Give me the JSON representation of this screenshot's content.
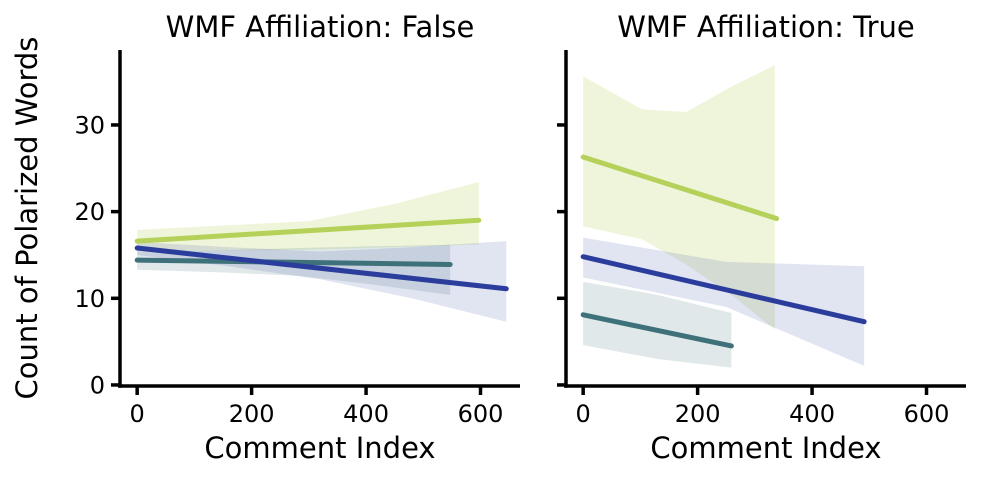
{
  "figure": {
    "background": "#ffffff",
    "text_color": "#000000",
    "axis_color": "#000000"
  },
  "chart_data": [
    {
      "type": "line",
      "title": "WMF Affiliation: False",
      "xlabel": "Comment Index",
      "ylabel": "Count of Polarized Words",
      "xlim": [
        -30,
        669
      ],
      "ylim": [
        -0.12,
        38.65
      ],
      "xticks": [
        0,
        200,
        400,
        600
      ],
      "yticks": [
        0,
        10,
        20,
        30
      ],
      "grid": false,
      "legend": "none",
      "series": [
        {
          "name": "green-series",
          "color": "#b5d15a",
          "band_opacity": 0.22,
          "x": [
            0,
            597
          ],
          "y": [
            16.6,
            19.0
          ],
          "band": {
            "x": [
              0,
              150,
              300,
              450,
              597
            ],
            "upper": [
              17.9,
              18.4,
              18.9,
              20.9,
              23.4
            ],
            "lower": [
              15.3,
              15.5,
              15.6,
              15.9,
              16.2
            ]
          }
        },
        {
          "name": "teal-series",
          "color": "#3f717a",
          "band_opacity": 0.16,
          "x": [
            0,
            547
          ],
          "y": [
            14.4,
            13.9
          ],
          "band": {
            "x": [
              0,
              140,
              280,
              410,
              547
            ],
            "upper": [
              15.3,
              15.5,
              15.8,
              16.0,
              16.2
            ],
            "lower": [
              13.3,
              13.0,
              12.6,
              11.6,
              10.4
            ]
          }
        },
        {
          "name": "blue-series",
          "color": "#2b3d9c",
          "band_opacity": 0.14,
          "x": [
            0,
            645
          ],
          "y": [
            15.8,
            11.1
          ],
          "band": {
            "x": [
              0,
              160,
              320,
              480,
              645
            ],
            "upper": [
              16.5,
              15.9,
              15.4,
              15.9,
              16.6
            ],
            "lower": [
              15.0,
              13.7,
              12.2,
              10.0,
              7.3
            ]
          }
        }
      ]
    },
    {
      "type": "line",
      "title": "WMF Affiliation: True",
      "xlabel": "Comment Index",
      "ylabel": "Count of Polarized Words",
      "xlim": [
        -30,
        669
      ],
      "ylim": [
        -0.12,
        38.65
      ],
      "xticks": [
        0,
        200,
        400,
        600
      ],
      "yticks": [
        0,
        10,
        20,
        30
      ],
      "grid": false,
      "legend": "none",
      "series": [
        {
          "name": "green-series",
          "color": "#b5d15a",
          "band_opacity": 0.22,
          "x": [
            0,
            338
          ],
          "y": [
            26.3,
            19.2
          ],
          "band": {
            "x": [
              0,
              103,
              180,
              261,
              335
            ],
            "upper": [
              35.6,
              31.8,
              31.5,
              34.5,
              36.9
            ],
            "lower": [
              18.3,
              16.8,
              13.9,
              10.3,
              6.4
            ]
          }
        },
        {
          "name": "teal-series",
          "color": "#3f717a",
          "band_opacity": 0.16,
          "x": [
            0,
            259
          ],
          "y": [
            8.1,
            4.5
          ],
          "band": {
            "x": [
              0,
              130,
              259
            ],
            "upper": [
              11.9,
              10.4,
              8.3
            ],
            "lower": [
              4.6,
              3.0,
              2.0
            ]
          }
        },
        {
          "name": "blue-series",
          "color": "#2b3d9c",
          "band_opacity": 0.14,
          "x": [
            0,
            491
          ],
          "y": [
            14.8,
            7.3
          ],
          "band": {
            "x": [
              0,
              250,
              491
            ],
            "upper": [
              17.0,
              14.2,
              13.7
            ],
            "lower": [
              12.4,
              9.0,
              2.2
            ]
          }
        }
      ]
    }
  ]
}
